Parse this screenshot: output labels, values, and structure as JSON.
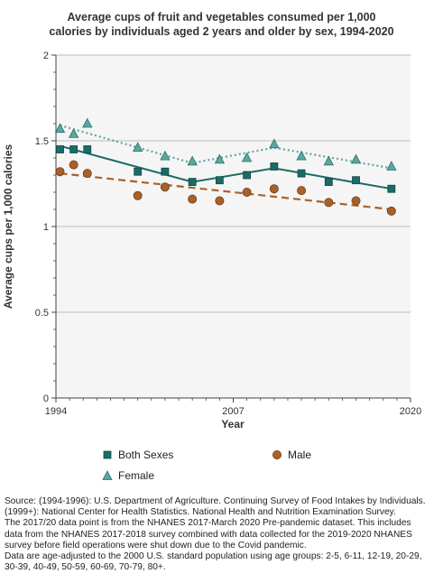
{
  "chart_data": {
    "type": "scatter",
    "title_lines": [
      "Average cups of fruit and vegetables consumed per 1,000",
      "calories by individuals aged 2 years and older by sex, 1994-2020"
    ],
    "xlabel": "Year",
    "ylabel": "Average cups per 1,000 calories",
    "xlim": [
      1994,
      2020
    ],
    "ylim": [
      0,
      2
    ],
    "x_ticks": [
      "1994",
      "2007",
      "2020"
    ],
    "y_ticks": [
      "0",
      "0.5",
      "1",
      "1.5",
      "2"
    ],
    "y_tick_values": [
      0,
      0.5,
      1,
      1.5,
      2
    ],
    "x_tick_values": [
      1994,
      2007,
      2020
    ],
    "grid": "horizontal",
    "legend_position": "bottom",
    "series": [
      {
        "name": "Both Sexes",
        "color": "#1b6b66",
        "marker": "square",
        "trend_style": "solid",
        "points": [
          {
            "x": 1994.3,
            "y": 1.45
          },
          {
            "x": 1995.3,
            "y": 1.45
          },
          {
            "x": 1996.3,
            "y": 1.45
          },
          {
            "x": 2000.0,
            "y": 1.32
          },
          {
            "x": 2002.0,
            "y": 1.32
          },
          {
            "x": 2004.0,
            "y": 1.26
          },
          {
            "x": 2006.0,
            "y": 1.27
          },
          {
            "x": 2008.0,
            "y": 1.3
          },
          {
            "x": 2010.0,
            "y": 1.35
          },
          {
            "x": 2012.0,
            "y": 1.31
          },
          {
            "x": 2014.0,
            "y": 1.26
          },
          {
            "x": 2016.0,
            "y": 1.27
          },
          {
            "x": 2018.6,
            "y": 1.22
          }
        ],
        "trend": [
          {
            "x": 1994.3,
            "y": 1.47
          },
          {
            "x": 2004.0,
            "y": 1.26
          },
          {
            "x": 2010.0,
            "y": 1.34
          },
          {
            "x": 2018.6,
            "y": 1.22
          }
        ]
      },
      {
        "name": "Male",
        "color": "#a8612a",
        "marker": "circle",
        "trend_style": "dashed",
        "points": [
          {
            "x": 1994.3,
            "y": 1.32
          },
          {
            "x": 1995.3,
            "y": 1.36
          },
          {
            "x": 1996.3,
            "y": 1.31
          },
          {
            "x": 2000.0,
            "y": 1.18
          },
          {
            "x": 2002.0,
            "y": 1.23
          },
          {
            "x": 2004.0,
            "y": 1.16
          },
          {
            "x": 2006.0,
            "y": 1.15
          },
          {
            "x": 2008.0,
            "y": 1.2
          },
          {
            "x": 2010.0,
            "y": 1.22
          },
          {
            "x": 2012.0,
            "y": 1.21
          },
          {
            "x": 2014.0,
            "y": 1.14
          },
          {
            "x": 2016.0,
            "y": 1.15
          },
          {
            "x": 2018.6,
            "y": 1.09
          }
        ],
        "trend": [
          {
            "x": 1994.3,
            "y": 1.31
          },
          {
            "x": 2018.6,
            "y": 1.1
          }
        ]
      },
      {
        "name": "Female",
        "color": "#5aa7a0",
        "marker": "triangle",
        "trend_style": "dotted",
        "points": [
          {
            "x": 1994.3,
            "y": 1.57
          },
          {
            "x": 1995.3,
            "y": 1.54
          },
          {
            "x": 1996.3,
            "y": 1.6
          },
          {
            "x": 2000.0,
            "y": 1.46
          },
          {
            "x": 2002.0,
            "y": 1.41
          },
          {
            "x": 2004.0,
            "y": 1.38
          },
          {
            "x": 2006.0,
            "y": 1.39
          },
          {
            "x": 2008.0,
            "y": 1.4
          },
          {
            "x": 2010.0,
            "y": 1.48
          },
          {
            "x": 2012.0,
            "y": 1.41
          },
          {
            "x": 2014.0,
            "y": 1.38
          },
          {
            "x": 2016.0,
            "y": 1.39
          },
          {
            "x": 2018.6,
            "y": 1.35
          }
        ],
        "trend": [
          {
            "x": 1994.3,
            "y": 1.59
          },
          {
            "x": 2004.0,
            "y": 1.37
          },
          {
            "x": 2010.0,
            "y": 1.46
          },
          {
            "x": 2018.6,
            "y": 1.34
          }
        ]
      }
    ]
  },
  "legend": {
    "both_sexes": "Both Sexes",
    "male": "Male",
    "female": "Female"
  },
  "source_lines": [
    "Source: (1994-1996): U.S. Department of Agriculture. Continuing Survey of Food Intakes by Individuals.",
    "(1999+): National Center for Health Statistics. National Health and Nutrition Examination Survey.",
    "The 2017/20 data point is from the NHANES 2017-March 2020 Pre-pandemic dataset. This includes",
    "data from the NHANES 2017-2018 survey combined with data collected for the 2019-2020 NHANES",
    "survey before field operations were shut down due to the Covid pandemic.",
    "Data are age-adjusted to the 2000 U.S. standard population using age groups: 2-5, 6-11, 12-19, 20-29,",
    "30-39, 40-49, 50-59, 60-69, 70-79, 80+."
  ]
}
